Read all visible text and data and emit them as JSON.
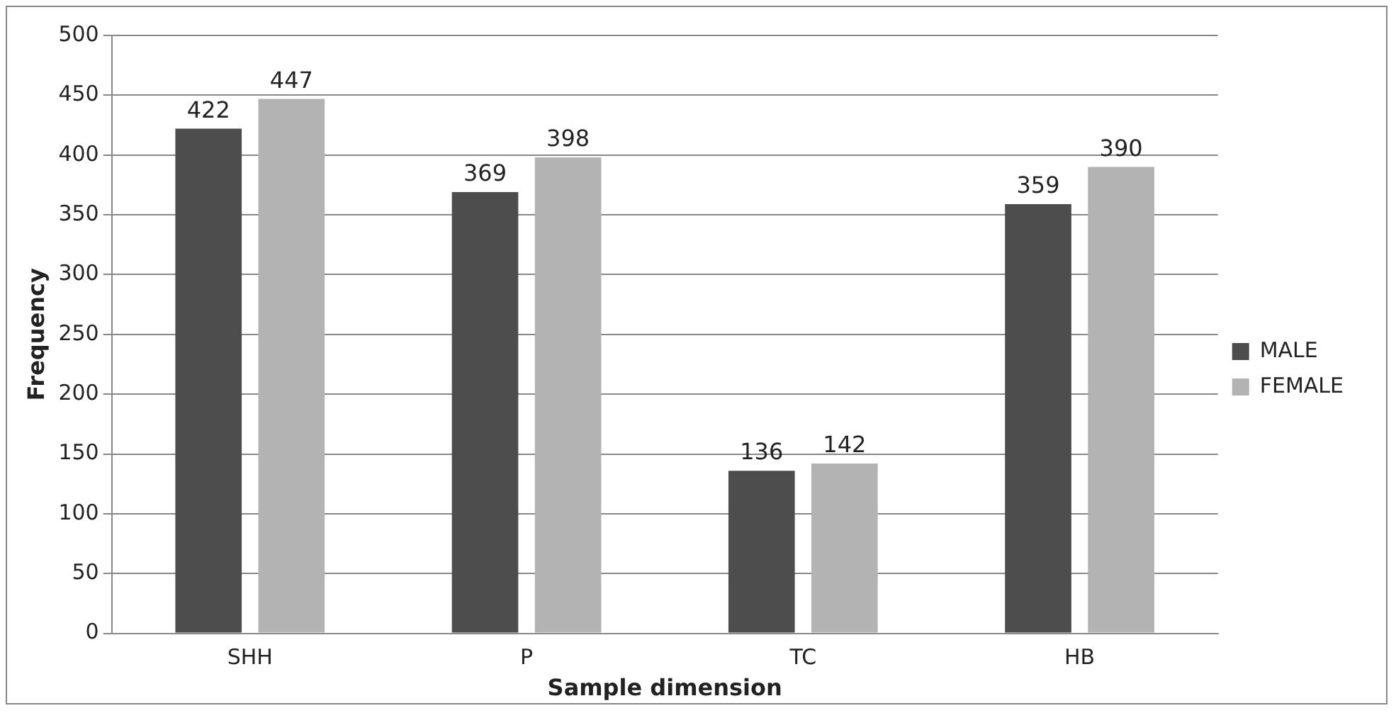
{
  "chart_data": {
    "type": "bar",
    "xlabel": "Sample dimension",
    "ylabel": "Frequency",
    "categories": [
      "SHH",
      "P",
      "TC",
      "HB"
    ],
    "series": [
      {
        "name": "MALE",
        "color": "#4d4d4d",
        "values": [
          422,
          369,
          136,
          359
        ]
      },
      {
        "name": "FEMALE",
        "color": "#b3b3b3",
        "values": [
          447,
          398,
          142,
          390
        ]
      }
    ],
    "ylim": [
      0,
      500
    ],
    "yticks": [
      0,
      50,
      100,
      150,
      200,
      250,
      300,
      350,
      400,
      450,
      500
    ],
    "grid": "y",
    "legend": "right",
    "data_labels": true
  }
}
